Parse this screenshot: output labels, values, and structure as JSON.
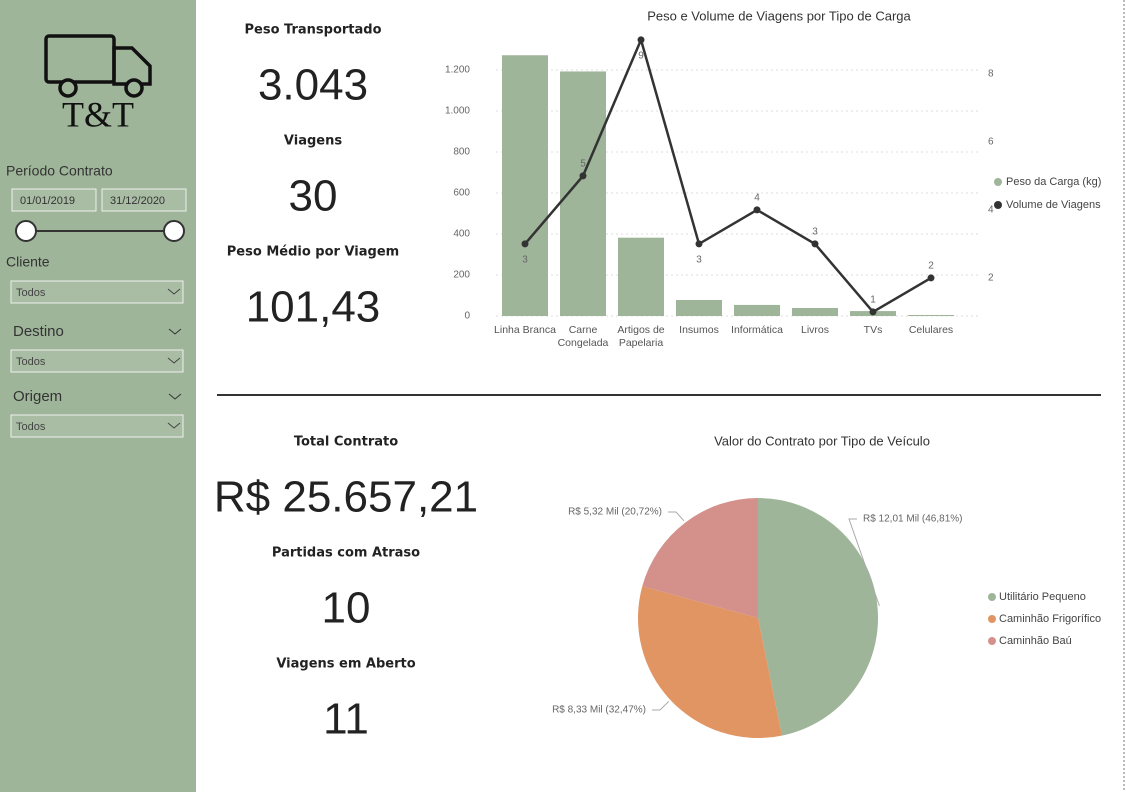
{
  "sidebar": {
    "logo": "T&T",
    "period_label": "Período Contrato",
    "date_from": "01/01/2019",
    "date_to": "31/12/2020",
    "filters": [
      {
        "label": "Cliente",
        "value": "Todos"
      },
      {
        "label": "Destino",
        "value": "Todos"
      },
      {
        "label": "Origem",
        "value": "Todos"
      }
    ]
  },
  "kpis": [
    {
      "label": "Peso Transportado",
      "value": "3.043"
    },
    {
      "label": "Viagens",
      "value": "30"
    },
    {
      "label": "Peso Médio por Viagem",
      "value": "101,43"
    },
    {
      "label": "Total Contrato",
      "value": "R$ 25.657,21"
    },
    {
      "label": "Partidas com Atraso",
      "value": "10"
    },
    {
      "label": "Viagens em Aberto",
      "value": "11"
    }
  ],
  "chart_data": [
    {
      "type": "bar",
      "title": "Peso e Volume de Viagens por Tipo de Carga",
      "categories": [
        "Linha Branca",
        "Carne Congelada",
        "Artigos de Papelaria",
        "Insumos",
        "Informática",
        "Livros",
        "TVs",
        "Celulares"
      ],
      "series": [
        {
          "name": "Peso da Carga (kg)",
          "color": "#9fb59a",
          "values": [
            1272,
            1193,
            382,
            78,
            54,
            39,
            24,
            5
          ]
        },
        {
          "name": "Volume de Viagens",
          "color": "#333333",
          "axis": "y2",
          "values": [
            3,
            5,
            9,
            3,
            4,
            3,
            1,
            2
          ]
        }
      ],
      "ylim": [
        0,
        1400
      ],
      "yticks": [
        0,
        200,
        400,
        600,
        800,
        {
          "value": 1000,
          "label": "1.000"
        },
        {
          "value": 1200,
          "label": "1.200"
        }
      ],
      "y2lim": [
        0.88,
        9.32
      ],
      "y2ticks": [
        2,
        4,
        6,
        8
      ],
      "grid": true,
      "legend": "right"
    },
    {
      "type": "pie",
      "title": "Valor do Contrato por Tipo de Veículo",
      "categories": [
        "Utilitário Pequeno",
        "Caminhão Frigorífico",
        "Caminhão Baú"
      ],
      "values": [
        12.01,
        8.33,
        5.32
      ],
      "value_labels": [
        "R$ 12,01 Mil (46,81%)",
        "R$ 8,33 Mil (32,47%)",
        "R$ 5,32 Mil (20,72%)"
      ],
      "colors": [
        "#9fb59a",
        "#e09563",
        "#d4908a"
      ],
      "legend": "right"
    }
  ]
}
